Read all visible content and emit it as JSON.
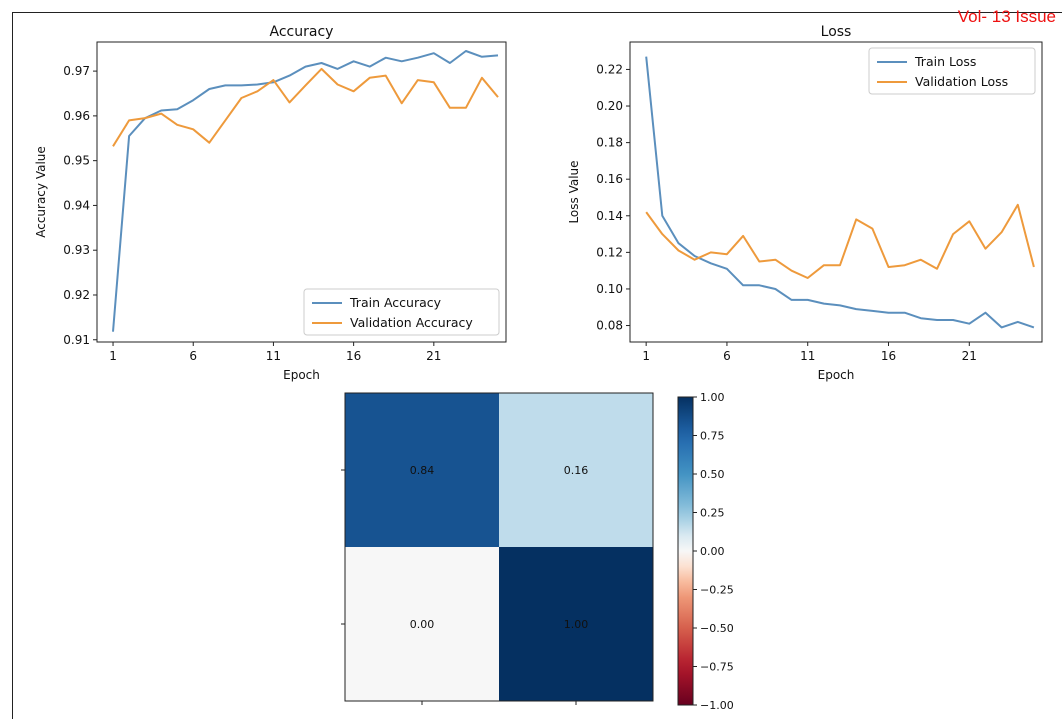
{
  "corner_note": "Vol- 13 Issue",
  "chart_data": [
    {
      "type": "line",
      "title": "Accuracy",
      "xlabel": "Epoch",
      "ylabel": "Accuracy Value",
      "xticks": [
        "1",
        "6",
        "11",
        "16",
        "21"
      ],
      "yticks": [
        "0.91",
        "0.92",
        "0.93",
        "0.94",
        "0.95",
        "0.96",
        "0.97"
      ],
      "xlim": [
        0,
        25.5
      ],
      "ylim": [
        0.9095,
        0.9765
      ],
      "legend_position": "lower-right",
      "grid": false,
      "x": [
        1,
        2,
        3,
        4,
        5,
        6,
        7,
        8,
        9,
        10,
        11,
        12,
        13,
        14,
        15,
        16,
        17,
        18,
        19,
        20,
        21,
        22,
        23,
        24,
        25
      ],
      "series": [
        {
          "name": "Train Accuracy",
          "color": "#5b8fbd",
          "values": [
            0.9118,
            0.9555,
            0.9595,
            0.9612,
            0.9615,
            0.9635,
            0.966,
            0.9668,
            0.9668,
            0.967,
            0.9675,
            0.969,
            0.971,
            0.9718,
            0.9705,
            0.9722,
            0.971,
            0.973,
            0.9722,
            0.973,
            0.974,
            0.9718,
            0.9745,
            0.9732,
            0.9735
          ]
        },
        {
          "name": "Validation Accuracy",
          "color": "#ee9a3c",
          "values": [
            0.9532,
            0.959,
            0.9595,
            0.9605,
            0.958,
            0.957,
            0.954,
            0.959,
            0.964,
            0.9655,
            0.968,
            0.963,
            0.9668,
            0.9705,
            0.967,
            0.9655,
            0.9685,
            0.969,
            0.9628,
            0.968,
            0.9675,
            0.9618,
            0.9618,
            0.9685,
            0.9642
          ]
        }
      ]
    },
    {
      "type": "line",
      "title": "Loss",
      "xlabel": "Epoch",
      "ylabel": "Loss Value",
      "xticks": [
        "1",
        "6",
        "11",
        "16",
        "21"
      ],
      "yticks": [
        "0.08",
        "0.10",
        "0.12",
        "0.14",
        "0.16",
        "0.18",
        "0.20",
        "0.22"
      ],
      "xlim": [
        0,
        25.5
      ],
      "ylim": [
        0.071,
        0.235
      ],
      "legend_position": "upper-right",
      "grid": false,
      "x": [
        1,
        2,
        3,
        4,
        5,
        6,
        7,
        8,
        9,
        10,
        11,
        12,
        13,
        14,
        15,
        16,
        17,
        18,
        19,
        20,
        21,
        22,
        23,
        24,
        25
      ],
      "series": [
        {
          "name": "Train Loss",
          "color": "#5b8fbd",
          "values": [
            0.227,
            0.14,
            0.125,
            0.118,
            0.114,
            0.111,
            0.102,
            0.102,
            0.1,
            0.094,
            0.094,
            0.092,
            0.091,
            0.089,
            0.088,
            0.087,
            0.087,
            0.084,
            0.083,
            0.083,
            0.081,
            0.087,
            0.079,
            0.082,
            0.079
          ]
        },
        {
          "name": "Validation Loss",
          "color": "#ee9a3c",
          "values": [
            0.142,
            0.13,
            0.121,
            0.116,
            0.12,
            0.119,
            0.129,
            0.115,
            0.116,
            0.11,
            0.106,
            0.113,
            0.113,
            0.138,
            0.133,
            0.112,
            0.113,
            0.116,
            0.111,
            0.13,
            0.137,
            0.122,
            0.131,
            0.146,
            0.112
          ]
        }
      ]
    },
    {
      "type": "heatmap",
      "title": "",
      "rows": 2,
      "cols": 2,
      "values": [
        [
          0.84,
          0.16
        ],
        [
          0.0,
          1.0
        ]
      ],
      "cell_labels": [
        [
          "0.84",
          "0.16"
        ],
        [
          "0.00",
          "1.00"
        ]
      ],
      "colormap": "RdBu",
      "vmin": -1.0,
      "vmax": 1.0,
      "colorbar_ticks": [
        "1.00",
        "0.75",
        "0.50",
        "0.25",
        "0.00",
        "−0.25",
        "−0.50",
        "−0.75",
        "−1.00"
      ],
      "colorbar_tick_values": [
        1.0,
        0.75,
        0.5,
        0.25,
        0.0,
        -0.25,
        -0.5,
        -0.75,
        -1.0
      ]
    }
  ]
}
